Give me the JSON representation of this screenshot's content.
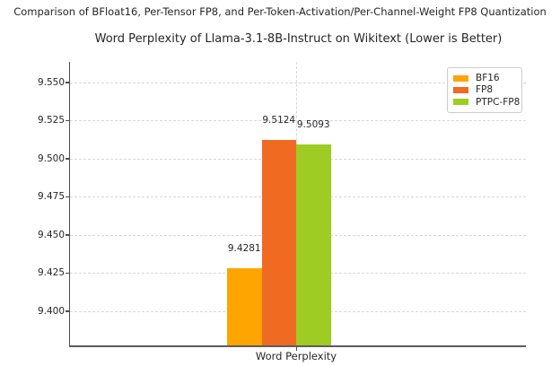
{
  "chart_data": {
    "type": "bar",
    "suptitle": "Comparison of BFloat16, Per-Tensor FP8, and Per-Token-Activation/Per-Channel-Weight FP8 Quantization",
    "title": "Word Perplexity of Llama-3.1-8B-Instruct on Wikitext (Lower is Better)",
    "categories": [
      "Word Perplexity"
    ],
    "series": [
      {
        "name": "BF16",
        "color": "#FFA502",
        "values": [
          9.4281
        ]
      },
      {
        "name": "FP8",
        "color": "#F16A21",
        "values": [
          9.5124
        ]
      },
      {
        "name": "PTPC-FP8",
        "color": "#9FCC23",
        "values": [
          9.5093
        ]
      }
    ],
    "value_labels": [
      "9.4281",
      "9.5124",
      "9.5093"
    ],
    "ylim": [
      9.3776,
      9.5635
    ],
    "yticks": [
      9.4,
      9.425,
      9.45,
      9.475,
      9.5,
      9.525,
      9.55
    ],
    "ytick_labels": [
      "9.400",
      "9.425",
      "9.450",
      "9.475",
      "9.500",
      "9.525",
      "9.550"
    ],
    "grid": true,
    "grid_style": "dashed",
    "legend": {
      "position": "upper right",
      "entries": [
        "BF16",
        "FP8",
        "PTPC-FP8"
      ]
    }
  },
  "colors": {
    "background": "#ffffff",
    "text": "#262626",
    "grid": "#d8d8d8",
    "spine": "#4d4d4d",
    "legend_border": "#cccccc"
  }
}
